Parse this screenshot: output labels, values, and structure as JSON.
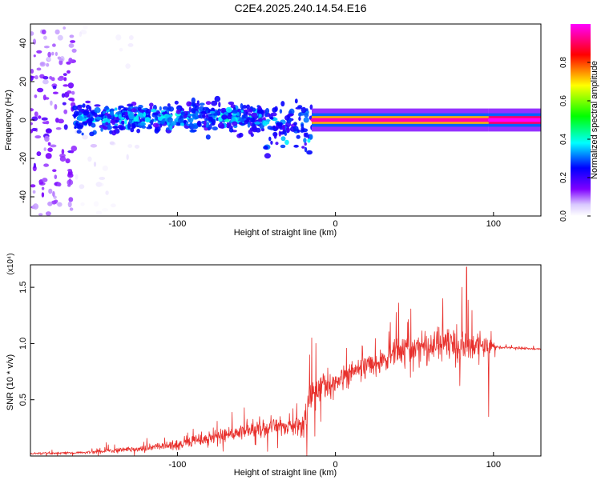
{
  "figure_title": "C2E4.2025.240.14.54.E16",
  "colors": {
    "snr_line": "#e8302c",
    "frame": "#000000",
    "colorscale": [
      "#ffffff",
      "#7f00ff",
      "#0000ff",
      "#00ffff",
      "#00ff00",
      "#ffff00",
      "#ff0000",
      "#ff00ff"
    ]
  },
  "chart_data": [
    {
      "type": "heatmap",
      "title": "",
      "xlabel": "Height of straight line (km)",
      "ylabel": "Frequency (Hz)",
      "xlim": [
        -193,
        130
      ],
      "ylim": [
        -50,
        50
      ],
      "x_ticks": [
        {
          "v": -100,
          "label": "-100"
        },
        {
          "v": 0,
          "label": "0"
        },
        {
          "v": 100,
          "label": "100"
        }
      ],
      "y_ticks": [
        {
          "v": -40,
          "label": "-40"
        },
        {
          "v": -20,
          "label": "-20"
        },
        {
          "v": 0,
          "label": "0"
        },
        {
          "v": 20,
          "label": "20"
        },
        {
          "v": 40,
          "label": "40"
        }
      ],
      "colorbar": {
        "label": "Normalized spectral amplitude",
        "range": [
          0,
          1
        ],
        "ticks": [
          {
            "v": 0.0,
            "label": "0.0"
          },
          {
            "v": 0.2,
            "label": "0.2"
          },
          {
            "v": 0.4,
            "label": "0.4"
          },
          {
            "v": 0.6,
            "label": "0.6"
          },
          {
            "v": 0.8,
            "label": "0.8"
          }
        ]
      },
      "regions": [
        {
          "x": [
            -193,
            -165
          ],
          "freq_center": 0,
          "freq_spread": 50,
          "amplitude": [
            0.05,
            0.25
          ],
          "density": "high"
        },
        {
          "x": [
            -165,
            -125
          ],
          "freq_center": 0,
          "freq_spread": 50,
          "amplitude": [
            0.0,
            0.1
          ],
          "density": "low"
        },
        {
          "x": [
            -165,
            -45
          ],
          "freq_center": 1,
          "freq_spread": 12,
          "amplitude": [
            0.15,
            0.45
          ],
          "density": "high"
        },
        {
          "x": [
            -45,
            -15
          ],
          "freq_center": -4,
          "freq_spread": 14,
          "amplitude": [
            0.15,
            0.4
          ],
          "density": "medium"
        },
        {
          "x": [
            -15,
            97
          ],
          "freq_center": 0,
          "freq_spread": 2,
          "amplitude": [
            0.6,
            0.95
          ],
          "density": "band"
        },
        {
          "x": [
            97,
            130
          ],
          "freq_center": 0,
          "freq_spread": 1,
          "amplitude": [
            0.9,
            1.0
          ],
          "density": "band"
        }
      ]
    },
    {
      "type": "line",
      "title": "",
      "xlabel": "Height of straight line (km)",
      "ylabel": "SNR (10 * v/v)",
      "y_multiplier": "(x10⁴)",
      "xlim": [
        -193,
        130
      ],
      "ylim": [
        0,
        1.7
      ],
      "x_ticks": [
        {
          "v": -100,
          "label": "-100"
        },
        {
          "v": 0,
          "label": "0"
        },
        {
          "v": 100,
          "label": "100"
        }
      ],
      "y_ticks": [
        {
          "v": 0.5,
          "label": "0.5"
        },
        {
          "v": 1.0,
          "label": "1.0"
        },
        {
          "v": 1.5,
          "label": "1.5"
        }
      ],
      "series": [
        {
          "name": "SNR",
          "envelope_x": [
            -193,
            -160,
            -140,
            -120,
            -100,
            -80,
            -60,
            -40,
            -25,
            -20,
            -17,
            -10,
            0,
            10,
            20,
            30,
            40,
            50,
            60,
            70,
            80,
            90,
            100,
            102,
            115,
            130
          ],
          "envelope_mean": [
            0.02,
            0.03,
            0.05,
            0.07,
            0.1,
            0.16,
            0.22,
            0.26,
            0.26,
            0.26,
            0.5,
            0.62,
            0.66,
            0.74,
            0.8,
            0.86,
            0.92,
            0.96,
            0.97,
            0.98,
            0.98,
            0.97,
            0.98,
            0.97,
            0.96,
            0.95
          ],
          "envelope_noise": [
            0.02,
            0.02,
            0.04,
            0.06,
            0.08,
            0.12,
            0.14,
            0.15,
            0.16,
            0.16,
            0.35,
            0.28,
            0.22,
            0.18,
            0.18,
            0.2,
            0.26,
            0.28,
            0.3,
            0.34,
            0.36,
            0.3,
            0.1,
            0.02,
            0.02,
            0.02
          ],
          "peaks": [
            {
              "x": -15,
              "y": 1.05
            },
            {
              "x": 40,
              "y": 1.36
            },
            {
              "x": 68,
              "y": 1.4
            },
            {
              "x": 83,
              "y": 1.68
            },
            {
              "x": 97,
              "y": 1.43
            },
            {
              "x": 97,
              "y": 0.35
            },
            {
              "x": -145,
              "y": 0.12
            },
            {
              "x": -90,
              "y": 0.24
            },
            {
              "x": -48,
              "y": 0.35
            }
          ]
        }
      ]
    }
  ]
}
